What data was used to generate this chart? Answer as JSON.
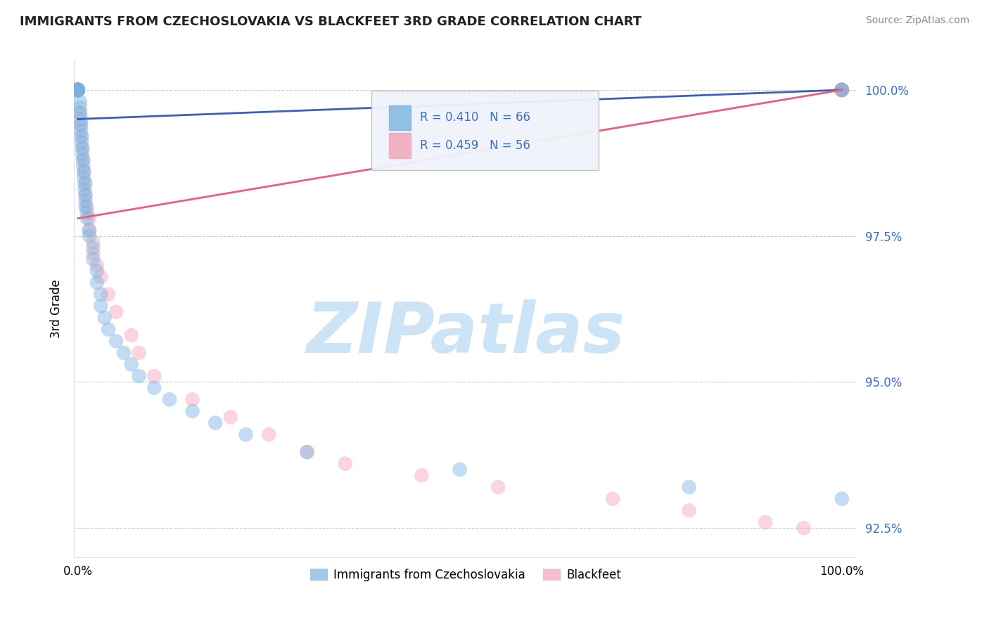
{
  "title": "IMMIGRANTS FROM CZECHOSLOVAKIA VS BLACKFEET 3RD GRADE CORRELATION CHART",
  "source": "Source: ZipAtlas.com",
  "ylabel": "3rd Grade",
  "blue_color": "#7ab3e0",
  "pink_color": "#f4a0b8",
  "blue_line_color": "#3a5fbf",
  "pink_line_color": "#e8607a",
  "watermark_text": "ZIPatlas",
  "watermark_color": "#cce4f5",
  "legend_box_color": "#e8f0fa",
  "legend_r1": "R = 0.410",
  "legend_n1": "N = 66",
  "legend_r2": "R = 0.459",
  "legend_n2": "N = 56",
  "text_blue": "#3a6fcc",
  "text_black": "#222222",
  "grid_color": "#cccccc",
  "y_min": 92.0,
  "y_max": 100.5,
  "x_min": 0.0,
  "x_max": 1.0,
  "y_ticks": [
    92.5,
    95.0,
    97.5,
    100.0
  ],
  "blue_scatter_x": [
    0.0,
    0.0,
    0.0,
    0.0,
    0.0,
    0.0,
    0.0,
    0.0,
    0.0,
    0.0,
    0.0,
    0.0,
    0.0,
    0.0,
    0.0,
    0.0,
    0.0,
    0.0,
    0.0,
    0.0,
    0.003,
    0.003,
    0.003,
    0.004,
    0.004,
    0.004,
    0.005,
    0.005,
    0.006,
    0.006,
    0.007,
    0.007,
    0.008,
    0.008,
    0.009,
    0.009,
    0.01,
    0.01,
    0.01,
    0.012,
    0.012,
    0.015,
    0.015,
    0.02,
    0.02,
    0.025,
    0.025,
    0.03,
    0.03,
    0.035,
    0.04,
    0.05,
    0.06,
    0.07,
    0.08,
    0.1,
    0.12,
    0.15,
    0.18,
    0.22,
    0.3,
    0.5,
    0.8,
    1.0,
    1.0,
    1.0
  ],
  "blue_scatter_y": [
    100.0,
    100.0,
    100.0,
    100.0,
    100.0,
    100.0,
    100.0,
    100.0,
    100.0,
    100.0,
    100.0,
    100.0,
    100.0,
    100.0,
    100.0,
    100.0,
    100.0,
    100.0,
    100.0,
    100.0,
    99.8,
    99.7,
    99.6,
    99.5,
    99.4,
    99.3,
    99.2,
    99.1,
    99.0,
    98.9,
    98.8,
    98.7,
    98.6,
    98.5,
    98.4,
    98.3,
    98.2,
    98.1,
    98.0,
    97.9,
    97.8,
    97.6,
    97.5,
    97.3,
    97.1,
    96.9,
    96.7,
    96.5,
    96.3,
    96.1,
    95.9,
    95.7,
    95.5,
    95.3,
    95.1,
    94.9,
    94.7,
    94.5,
    94.3,
    94.1,
    93.8,
    93.5,
    93.2,
    93.0,
    100.0,
    100.0
  ],
  "pink_scatter_x": [
    0.0,
    0.0,
    0.0,
    0.0,
    0.0,
    0.0,
    0.0,
    0.0,
    0.0,
    0.0,
    0.0,
    0.0,
    0.0,
    0.0,
    0.0,
    0.0,
    0.0,
    0.003,
    0.004,
    0.005,
    0.006,
    0.007,
    0.008,
    0.01,
    0.01,
    0.012,
    0.015,
    0.015,
    0.02,
    0.02,
    0.025,
    0.03,
    0.04,
    0.05,
    0.07,
    0.08,
    0.1,
    0.15,
    0.2,
    0.25,
    0.3,
    0.35,
    0.45,
    0.55,
    0.7,
    0.8,
    0.9,
    0.95,
    1.0,
    1.0,
    1.0,
    1.0,
    1.0,
    1.0,
    1.0,
    1.0
  ],
  "pink_scatter_y": [
    100.0,
    100.0,
    100.0,
    100.0,
    100.0,
    100.0,
    100.0,
    100.0,
    100.0,
    100.0,
    100.0,
    100.0,
    100.0,
    100.0,
    100.0,
    100.0,
    100.0,
    99.6,
    99.4,
    99.2,
    99.0,
    98.8,
    98.6,
    98.4,
    98.2,
    98.0,
    97.8,
    97.6,
    97.4,
    97.2,
    97.0,
    96.8,
    96.5,
    96.2,
    95.8,
    95.5,
    95.1,
    94.7,
    94.4,
    94.1,
    93.8,
    93.6,
    93.4,
    93.2,
    93.0,
    92.8,
    92.6,
    92.5,
    100.0,
    100.0,
    100.0,
    100.0,
    100.0,
    100.0,
    100.0,
    100.0
  ],
  "blue_line_x": [
    0.0,
    1.0
  ],
  "blue_line_y": [
    99.5,
    100.0
  ],
  "pink_line_x": [
    0.0,
    1.0
  ],
  "pink_line_y": [
    97.8,
    100.0
  ]
}
